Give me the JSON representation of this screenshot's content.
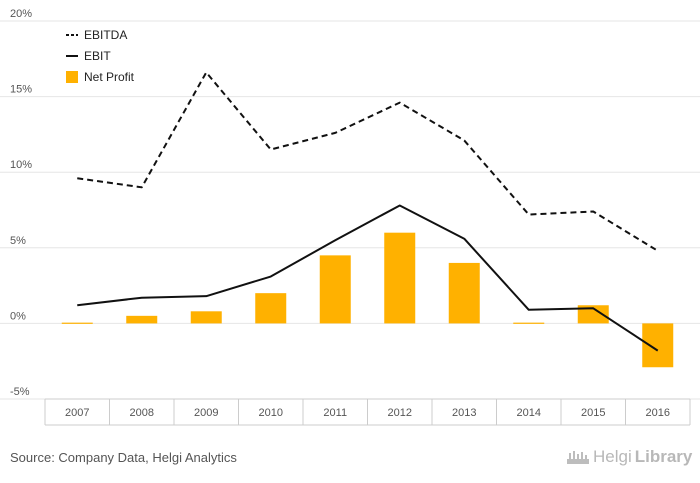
{
  "chart_data": {
    "type": "bar",
    "categories": [
      "2007",
      "2008",
      "2009",
      "2010",
      "2011",
      "2012",
      "2013",
      "2014",
      "2015",
      "2016"
    ],
    "y_ticks": [
      "20%",
      "15%",
      "10%",
      "5%",
      "0%",
      "-5%"
    ],
    "y_tick_values": [
      20,
      15,
      10,
      5,
      0,
      -5
    ],
    "ylim": [
      -5,
      20
    ],
    "grid": true,
    "legend_position": "top-left",
    "series": [
      {
        "name": "EBITDA",
        "kind": "line",
        "dash": "dashed",
        "color": "#111111",
        "values": [
          9.6,
          9.0,
          16.6,
          11.5,
          12.6,
          14.6,
          12.1,
          7.2,
          7.4,
          4.8
        ]
      },
      {
        "name": "EBIT",
        "kind": "line",
        "dash": "solid",
        "color": "#111111",
        "values": [
          1.2,
          1.7,
          1.8,
          3.1,
          5.5,
          7.8,
          5.6,
          0.9,
          1.0,
          -1.8
        ]
      },
      {
        "name": "Net Profit",
        "kind": "bar",
        "color": "#FFB100",
        "values": [
          0.05,
          0.5,
          0.8,
          2.0,
          4.5,
          6.0,
          4.0,
          0.05,
          1.2,
          -2.9
        ]
      }
    ]
  },
  "footer": {
    "source": "Source: Company Data, Helgi Analytics",
    "logo_regular": "Helgi",
    "logo_bold": "Library"
  }
}
